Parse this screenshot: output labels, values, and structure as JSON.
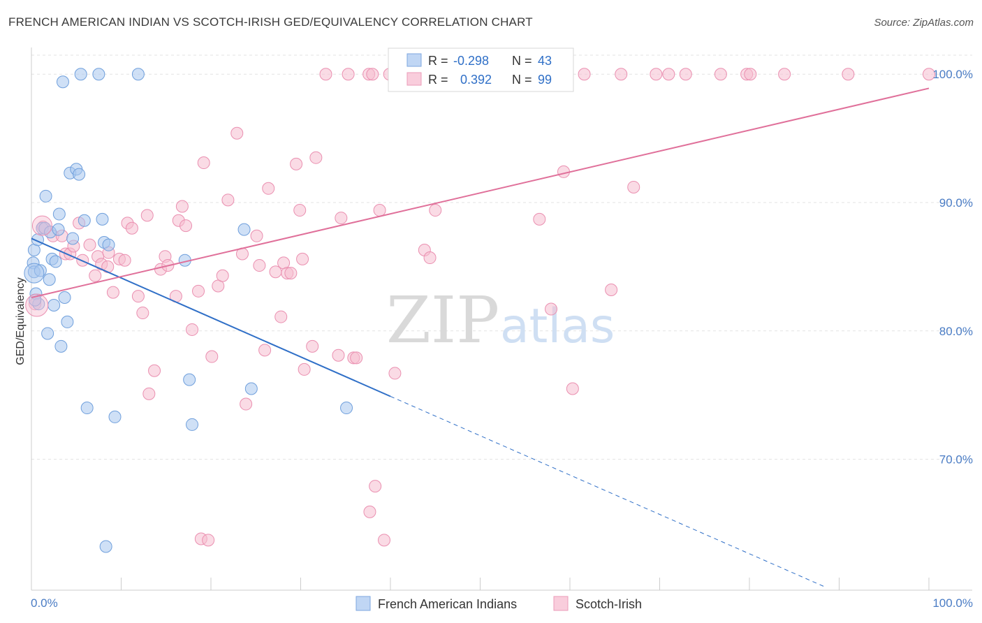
{
  "title": "FRENCH AMERICAN INDIAN VS SCOTCH-IRISH GED/EQUIVALENCY CORRELATION CHART",
  "source": "Source: ZipAtlas.com",
  "watermark": {
    "zip": "ZIP",
    "atlas": "atlas"
  },
  "chart_data": {
    "type": "scatter",
    "ylabel": "GED/Equivalency",
    "xlim": [
      0,
      100
    ],
    "ylim": [
      59.8,
      101.7
    ],
    "x_tick_labels": [
      "0.0%",
      "100.0%"
    ],
    "y_ticks": [
      {
        "value": 70,
        "label": "70.0%"
      },
      {
        "value": 80,
        "label": "80.0%"
      },
      {
        "value": 90,
        "label": "90.0%"
      },
      {
        "value": 100,
        "label": "100.0%"
      }
    ],
    "grid": true,
    "legend_placement": "top-center",
    "series": [
      {
        "name": "French American Indians",
        "color": "#a8c6ee",
        "edge": "#6f9fdc",
        "line_color": "#2f6fc7",
        "R": "-0.298",
        "N": "43",
        "trend": {
          "x0": 0,
          "y0": 87.2,
          "x1": 40,
          "y1": 74.9,
          "dash_to_x": 88.6,
          "dash_to_y": 60.0
        },
        "points": [
          [
            0.3,
            86.3
          ],
          [
            0.2,
            85.3
          ],
          [
            0.3,
            84.6
          ],
          [
            0.5,
            82.9
          ],
          [
            0.8,
            82.1
          ],
          [
            0.7,
            87.1
          ],
          [
            1.2,
            88.0
          ],
          [
            1.5,
            88.0
          ],
          [
            1.6,
            90.5
          ],
          [
            1.8,
            79.8
          ],
          [
            2.0,
            84.0
          ],
          [
            2.1,
            87.7
          ],
          [
            2.3,
            85.6
          ],
          [
            2.5,
            82.0
          ],
          [
            2.7,
            85.4
          ],
          [
            3.0,
            87.9
          ],
          [
            3.1,
            89.1
          ],
          [
            3.3,
            78.8
          ],
          [
            3.5,
            99.4
          ],
          [
            3.7,
            82.6
          ],
          [
            4.0,
            80.7
          ],
          [
            4.3,
            92.3
          ],
          [
            4.6,
            87.2
          ],
          [
            5.0,
            92.6
          ],
          [
            5.3,
            92.2
          ],
          [
            5.5,
            100.0
          ],
          [
            5.9,
            88.6
          ],
          [
            6.2,
            74.0
          ],
          [
            7.5,
            100.0
          ],
          [
            7.9,
            88.7
          ],
          [
            8.1,
            86.9
          ],
          [
            8.3,
            63.2
          ],
          [
            8.6,
            86.7
          ],
          [
            9.3,
            73.3
          ],
          [
            11.9,
            100.0
          ],
          [
            17.1,
            85.5
          ],
          [
            17.6,
            76.2
          ],
          [
            17.9,
            72.7
          ],
          [
            23.7,
            87.9
          ],
          [
            24.5,
            75.5
          ],
          [
            35.1,
            74.0
          ],
          [
            0.4,
            82.4
          ],
          [
            1.0,
            84.7
          ]
        ]
      },
      {
        "name": "Scotch-Irish",
        "color": "#f6bdd0",
        "edge": "#ea8fb0",
        "line_color": "#e0709a",
        "R": "0.392",
        "N": "99",
        "trend": {
          "x0": 0,
          "y0": 82.6,
          "x1": 100,
          "y1": 98.9
        },
        "points": [
          [
            0.4,
            82.1
          ],
          [
            1.3,
            88.1
          ],
          [
            2.4,
            87.4
          ],
          [
            3.4,
            87.4
          ],
          [
            3.8,
            86.0
          ],
          [
            4.3,
            86.0
          ],
          [
            4.7,
            86.6
          ],
          [
            5.3,
            88.4
          ],
          [
            5.7,
            85.5
          ],
          [
            6.5,
            86.7
          ],
          [
            7.1,
            84.3
          ],
          [
            7.4,
            85.8
          ],
          [
            7.8,
            85.2
          ],
          [
            8.5,
            85.0
          ],
          [
            8.6,
            86.1
          ],
          [
            9.1,
            83.0
          ],
          [
            9.8,
            85.6
          ],
          [
            10.4,
            85.5
          ],
          [
            10.7,
            88.4
          ],
          [
            11.2,
            88.0
          ],
          [
            11.9,
            82.7
          ],
          [
            12.4,
            81.4
          ],
          [
            12.9,
            89.0
          ],
          [
            13.1,
            75.1
          ],
          [
            13.7,
            76.9
          ],
          [
            14.4,
            84.8
          ],
          [
            14.9,
            85.8
          ],
          [
            15.2,
            85.1
          ],
          [
            16.1,
            82.7
          ],
          [
            16.4,
            88.6
          ],
          [
            16.8,
            89.7
          ],
          [
            17.2,
            88.2
          ],
          [
            17.9,
            80.1
          ],
          [
            18.6,
            83.1
          ],
          [
            18.9,
            63.8
          ],
          [
            19.2,
            93.1
          ],
          [
            19.7,
            63.7
          ],
          [
            20.1,
            78.0
          ],
          [
            20.8,
            83.5
          ],
          [
            21.3,
            84.3
          ],
          [
            21.9,
            90.2
          ],
          [
            22.9,
            95.4
          ],
          [
            23.5,
            86.0
          ],
          [
            23.9,
            74.3
          ],
          [
            25.1,
            87.4
          ],
          [
            25.4,
            85.1
          ],
          [
            26.0,
            78.5
          ],
          [
            26.4,
            91.1
          ],
          [
            27.2,
            84.6
          ],
          [
            27.8,
            81.1
          ],
          [
            28.1,
            85.3
          ],
          [
            28.5,
            84.5
          ],
          [
            28.9,
            84.5
          ],
          [
            29.5,
            93.0
          ],
          [
            29.9,
            89.4
          ],
          [
            30.2,
            85.6
          ],
          [
            30.4,
            77.0
          ],
          [
            31.3,
            78.8
          ],
          [
            31.7,
            93.5
          ],
          [
            32.8,
            100.0
          ],
          [
            34.2,
            78.1
          ],
          [
            34.5,
            88.8
          ],
          [
            35.3,
            100.0
          ],
          [
            35.9,
            77.9
          ],
          [
            36.2,
            77.9
          ],
          [
            37.6,
            100.0
          ],
          [
            37.7,
            65.9
          ],
          [
            38.0,
            100.0
          ],
          [
            38.3,
            67.9
          ],
          [
            38.8,
            89.4
          ],
          [
            39.3,
            63.7
          ],
          [
            39.9,
            100.0
          ],
          [
            40.5,
            76.7
          ],
          [
            40.9,
            100.0
          ],
          [
            43.3,
            100.0
          ],
          [
            43.8,
            86.3
          ],
          [
            44.4,
            85.7
          ],
          [
            45.0,
            89.4
          ],
          [
            47.1,
            100.0
          ],
          [
            47.8,
            100.0
          ],
          [
            50.6,
            100.0
          ],
          [
            52.8,
            100.0
          ],
          [
            56.6,
            88.7
          ],
          [
            57.9,
            81.7
          ],
          [
            59.3,
            92.4
          ],
          [
            60.3,
            75.5
          ],
          [
            61.6,
            100.0
          ],
          [
            65.7,
            100.0
          ],
          [
            64.6,
            83.2
          ],
          [
            67.1,
            91.2
          ],
          [
            69.6,
            100.0
          ],
          [
            71.0,
            100.0
          ],
          [
            72.9,
            100.0
          ],
          [
            76.8,
            100.0
          ],
          [
            79.7,
            100.0
          ],
          [
            80.1,
            100.0
          ],
          [
            83.9,
            100.0
          ],
          [
            91.0,
            100.0
          ],
          [
            100.0,
            100.0
          ]
        ]
      }
    ]
  }
}
